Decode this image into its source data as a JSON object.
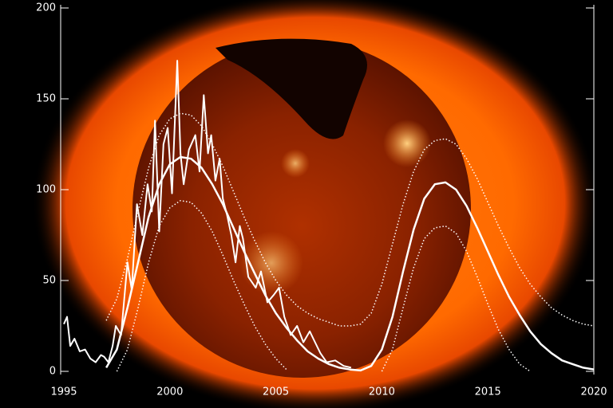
{
  "chart_data": {
    "type": "line",
    "xlim": [
      1995,
      2020
    ],
    "ylim": [
      0,
      200
    ],
    "xticks": [
      1995,
      2000,
      2005,
      2010,
      2015,
      2020
    ],
    "yticks": [
      0,
      50,
      100,
      150,
      200
    ],
    "series": [
      {
        "color": "#ffffff",
        "style": "solid",
        "width": 2,
        "x": [
          1995.0,
          1995.15,
          1995.3,
          1995.5,
          1995.75,
          1996.0,
          1996.25,
          1996.5,
          1996.75,
          1996.9,
          1997.1,
          1997.3,
          1997.45,
          1997.7,
          1998.0,
          1998.2,
          1998.45,
          1998.7,
          1998.95,
          1999.15,
          1999.3,
          1999.5,
          1999.7,
          1999.9,
          2000.1,
          2000.35,
          2000.5,
          2000.65,
          2000.9,
          2001.2,
          2001.4,
          2001.6,
          2001.8,
          2001.95,
          2002.15,
          2002.35,
          2002.5,
          2002.7,
          2002.9,
          2003.1,
          2003.3,
          2003.45,
          2003.7,
          2004.05,
          2004.3,
          2004.6,
          2004.9,
          2005.15,
          2005.4,
          2005.7,
          2006.0,
          2006.3,
          2006.6,
          2006.85,
          2007.1,
          2007.4,
          2007.8,
          2008.2,
          2008.55
        ],
        "values": [
          26,
          30,
          14,
          18,
          11,
          12,
          7,
          5,
          9,
          8,
          5,
          14,
          25,
          20,
          60,
          45,
          92,
          75,
          103,
          88,
          138,
          77,
          125,
          134,
          98,
          171,
          120,
          103,
          122,
          130,
          110,
          152,
          120,
          130,
          105,
          117,
          95,
          86,
          75,
          60,
          80,
          73,
          52,
          46,
          55,
          38,
          42,
          46,
          30,
          20,
          25,
          16,
          22,
          16,
          10,
          5,
          6,
          3,
          2
        ]
      },
      {
        "color": "#ffffff",
        "style": "solid",
        "width": 2.5,
        "x": [
          1997,
          1997.5,
          1998,
          1998.5,
          1999,
          1999.5,
          2000,
          2000.5,
          2001,
          2001.5,
          2002,
          2002.5,
          2003,
          2003.5,
          2004,
          2004.5,
          2005,
          2005.5,
          2006,
          2006.5,
          2007,
          2007.5,
          2008,
          2008.5,
          2009,
          2009.5,
          2010,
          2010.5,
          2011,
          2011.5,
          2012,
          2012.5,
          2013,
          2013.5,
          2014,
          2014.5,
          2015,
          2015.5,
          2016,
          2016.5,
          2017,
          2017.5,
          2018,
          2018.5,
          2019,
          2019.5,
          2020
        ],
        "values": [
          2,
          12,
          35,
          60,
          85,
          103,
          114,
          118,
          117,
          112,
          103,
          92,
          79,
          66,
          54,
          42,
          32,
          24,
          17,
          11,
          7,
          4,
          2,
          1,
          0.5,
          3,
          12,
          30,
          55,
          78,
          95,
          103,
          104,
          100,
          91,
          79,
          66,
          53,
          41,
          31,
          22,
          15,
          10,
          6,
          4,
          2,
          1
        ]
      },
      {
        "color": "#ffffff",
        "style": "dotted",
        "width": 1.5,
        "x": [
          1997,
          1997.5,
          1998,
          1998.5,
          1999,
          1999.5,
          2000,
          2000.5,
          2001,
          2001.5,
          2002,
          2002.5,
          2003,
          2003.5,
          2004,
          2004.5,
          2005,
          2005.5,
          2006,
          2006.5,
          2007,
          2007.5,
          2008,
          2008.5,
          2009,
          2009.5,
          2010,
          2010.5,
          2011,
          2011.5,
          2012,
          2012.5,
          2013,
          2013.5,
          2014,
          2014.5,
          2015,
          2015.5,
          2016,
          2016.5,
          2017,
          2017.5,
          2018,
          2018.5,
          2019,
          2019.5,
          2020
        ],
        "values": [
          28,
          40,
          62,
          88,
          112,
          130,
          139,
          142,
          141,
          135,
          125,
          113,
          99,
          85,
          72,
          60,
          50,
          42,
          36,
          32,
          29,
          27,
          25,
          25,
          26,
          32,
          48,
          70,
          92,
          110,
          122,
          127,
          128,
          125,
          117,
          106,
          93,
          80,
          68,
          57,
          48,
          41,
          35,
          31,
          28,
          26,
          25
        ]
      },
      {
        "color": "#ffffff",
        "style": "dotted",
        "width": 1.5,
        "x": [
          1997.5,
          1998,
          1998.5,
          1999,
          1999.5,
          2000,
          2000.5,
          2001,
          2001.5,
          2002,
          2002.5,
          2003,
          2003.5,
          2004,
          2004.5,
          2005,
          2005.5,
          2007.5,
          2010,
          2010.5,
          2011,
          2011.5,
          2012,
          2012.5,
          2013,
          2013.5,
          2014,
          2014.5,
          2015,
          2015.5,
          2016,
          2016.5,
          2017
        ],
        "values": [
          0,
          12,
          35,
          60,
          80,
          90,
          94,
          93,
          87,
          77,
          64,
          50,
          37,
          25,
          15,
          7,
          1,
          null,
          0,
          12,
          35,
          57,
          73,
          79,
          80,
          76,
          66,
          52,
          37,
          23,
          12,
          4,
          0
        ]
      }
    ]
  }
}
